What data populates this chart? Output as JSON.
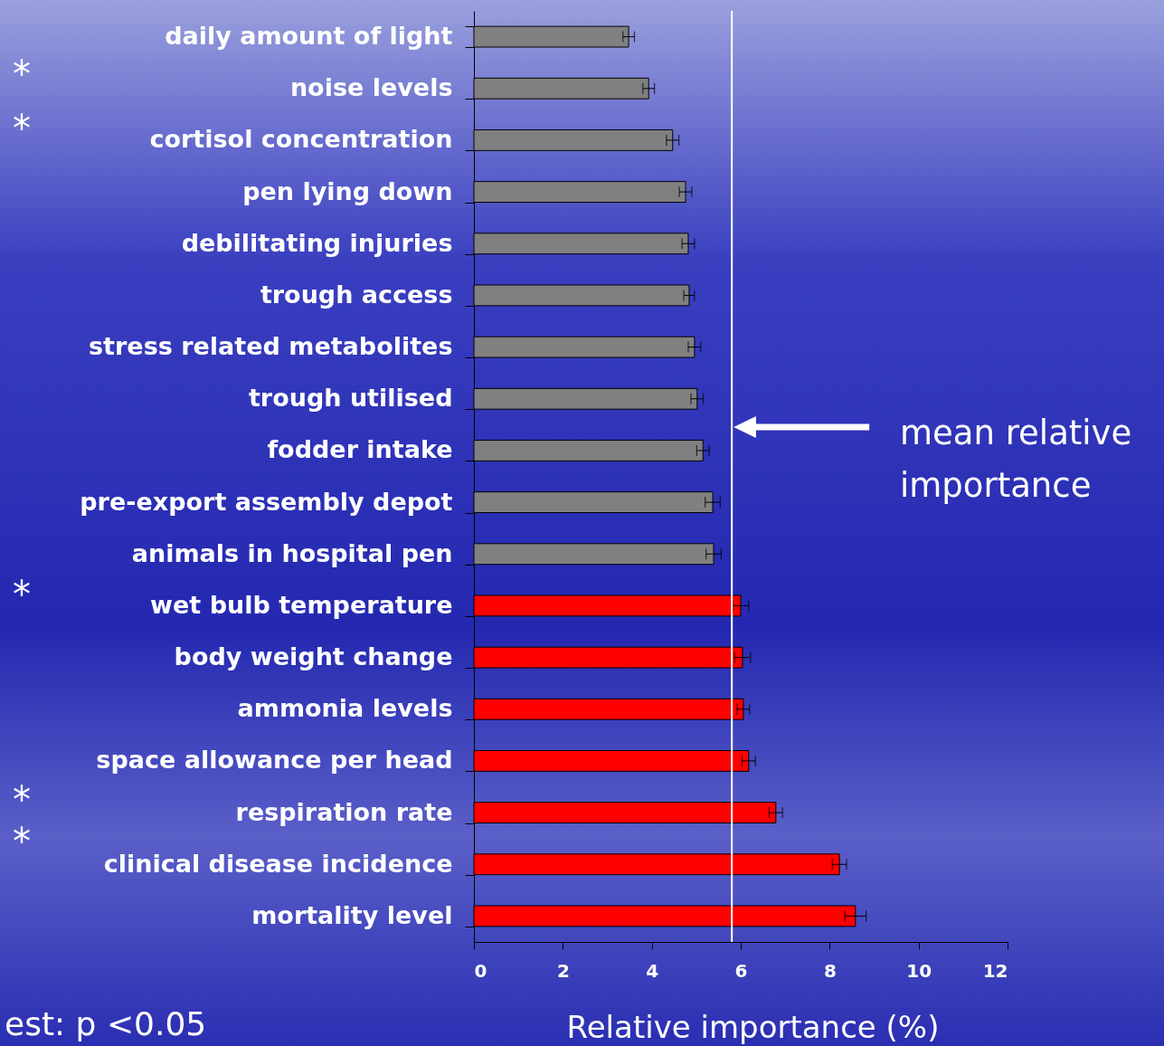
{
  "chart_data": {
    "type": "bar",
    "orientation": "horizontal",
    "xlabel": "Relative importance (%)",
    "categories": [
      "daily amount of light",
      "noise levels",
      "cortisol concentration",
      "pen lying down",
      "debilitating injuries",
      "trough access",
      "stress related metabolites",
      "trough utilised",
      "fodder intake",
      "pre-export assembly depot",
      "animals in hospital pen",
      "wet bulb temperature",
      "body weight change",
      "ammonia levels",
      "space allowance per head",
      "respiration rate",
      "clinical disease incidence",
      "mortality level"
    ],
    "values": [
      3.48,
      3.93,
      4.47,
      4.76,
      4.82,
      4.84,
      4.96,
      5.02,
      5.15,
      5.37,
      5.39,
      6.0,
      6.04,
      6.06,
      6.18,
      6.79,
      8.22,
      8.58
    ],
    "errors": [
      0.13,
      0.13,
      0.14,
      0.14,
      0.14,
      0.12,
      0.14,
      0.14,
      0.14,
      0.17,
      0.17,
      0.18,
      0.18,
      0.14,
      0.15,
      0.15,
      0.16,
      0.24
    ],
    "colors": [
      "#808080",
      "#808080",
      "#808080",
      "#808080",
      "#808080",
      "#808080",
      "#808080",
      "#808080",
      "#808080",
      "#808080",
      "#808080",
      "#ff0000",
      "#ff0000",
      "#ff0000",
      "#ff0000",
      "#ff0000",
      "#ff0000",
      "#ff0000"
    ],
    "xlim": [
      0,
      12
    ],
    "xticks": [
      0,
      2,
      4,
      6,
      8,
      10,
      12
    ],
    "ref_lines": [
      {
        "axis": "x",
        "value": 5.8,
        "label": "mean relative importance",
        "color": "#ffffff"
      }
    ],
    "annotations": [
      "*",
      "*",
      "*",
      "*",
      "*",
      "est: p <0.05"
    ]
  }
}
